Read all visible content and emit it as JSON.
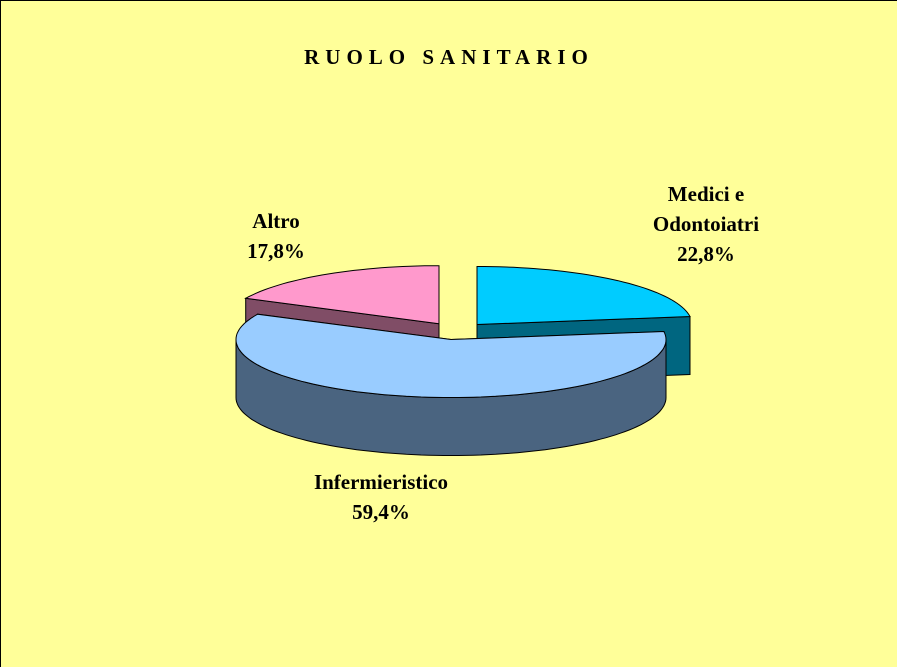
{
  "chart_data": {
    "type": "pie",
    "title": "RUOLO SANITARIO",
    "categories": [
      "Medici e Odontoiatri",
      "Infermieristico",
      "Altro"
    ],
    "values": [
      22.8,
      59.4,
      17.8
    ],
    "value_labels": [
      "22,8%",
      "59,4%",
      "17,8%"
    ],
    "colors": [
      "#00CCFF",
      "#99CCFF",
      "#FF99CC"
    ],
    "side_colors": [
      "#006680",
      "#4A6480",
      "#804D66"
    ],
    "background": "#FFFF99"
  }
}
